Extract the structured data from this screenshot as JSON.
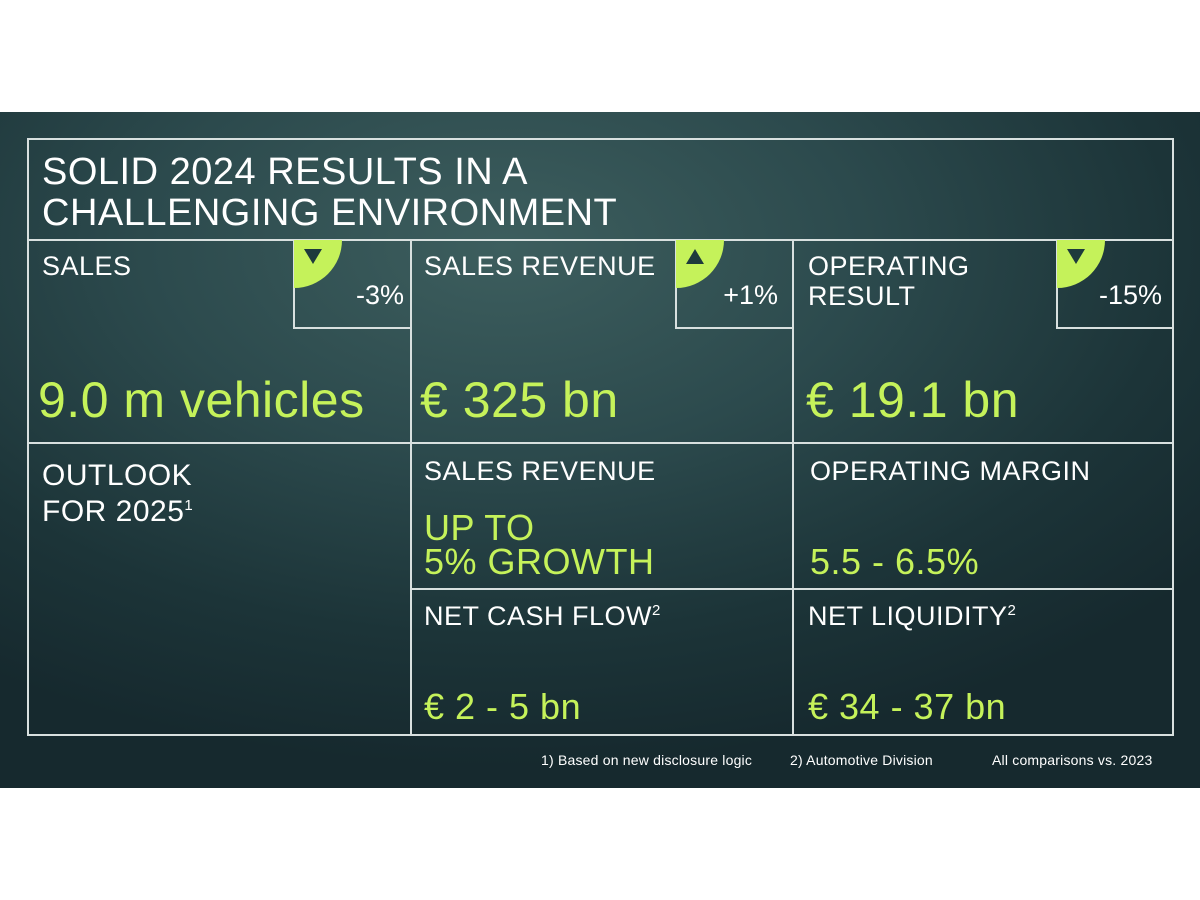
{
  "title_line1": "SOLID 2024 RESULTS IN A",
  "title_line2": "CHALLENGING ENVIRONMENT",
  "colors": {
    "accent": "#c5f25a",
    "background": "#1f3a3e",
    "line": "#d8e0df"
  },
  "kpis": [
    {
      "label_line1": "SALES",
      "label_line2": "",
      "change": "-3%",
      "direction": "down",
      "value": "9.0 m vehicles"
    },
    {
      "label_line1": "SALES REVENUE",
      "label_line2": "",
      "change": "+1%",
      "direction": "up",
      "value": "€ 325 bn"
    },
    {
      "label_line1": "OPERATING",
      "label_line2": "RESULT",
      "change": "-15%",
      "direction": "down",
      "value": "€ 19.1 bn"
    }
  ],
  "outlook": {
    "label_line1": "OUTLOOK",
    "label_line2": "FOR 2025",
    "footnote_ref": "1",
    "items": [
      {
        "label": "SALES REVENUE",
        "footnote_ref": "",
        "value_line1": "UP TO",
        "value_line2": "5% GROWTH"
      },
      {
        "label": "OPERATING MARGIN",
        "footnote_ref": "",
        "value_line1": "5.5 - 6.5%",
        "value_line2": ""
      },
      {
        "label": "NET CASH FLOW",
        "footnote_ref": "2",
        "value_line1": "€ 2 - 5 bn",
        "value_line2": ""
      },
      {
        "label": "NET LIQUIDITY",
        "footnote_ref": "2",
        "value_line1": "€ 34 - 37 bn",
        "value_line2": ""
      }
    ]
  },
  "footnotes": {
    "note1": "1)  Based on new disclosure logic",
    "note2": "2) Automotive Division",
    "comparison": "All comparisons vs. 2023"
  }
}
